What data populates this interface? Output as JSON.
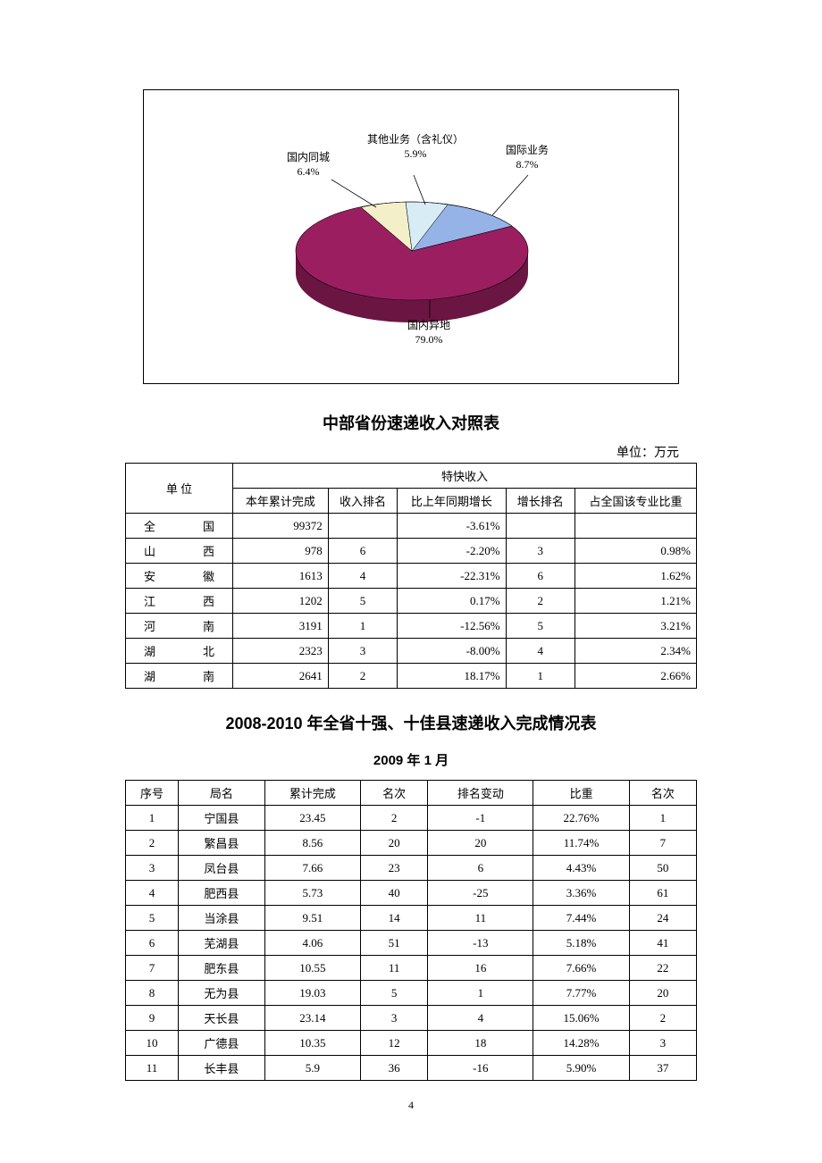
{
  "pie_chart": {
    "type": "pie",
    "background_color": "#ffffff",
    "border_color": "#000000",
    "slices": [
      {
        "label": "国内异地",
        "percent_text": "79.0%",
        "value": 79.0,
        "color": "#9b1f60",
        "side_color": "#6b1543"
      },
      {
        "label": "国际业务",
        "percent_text": "8.7%",
        "value": 8.7,
        "color": "#95b3e6",
        "side_color": "#6a84b5"
      },
      {
        "label": "其他业务（含礼仪）",
        "percent_text": "5.9%",
        "value": 5.9,
        "color": "#d7ecf4"
      },
      {
        "label": "国内同城",
        "percent_text": "6.4%",
        "value": 6.4,
        "color": "#f3efc9"
      }
    ],
    "label_fontsize": 12
  },
  "table1": {
    "title": "中部省份速递收入对照表",
    "unit": "单位：万元",
    "header_group": "特快收入",
    "header_unit": "单        位",
    "headers": [
      "本年累计完成",
      "收入排名",
      "比上年同期增长",
      "增长排名",
      "占全国该专业比重"
    ],
    "rows": [
      {
        "unit": "全        国",
        "v": [
          "99372",
          "",
          "-3.61%",
          "",
          ""
        ]
      },
      {
        "unit": "山        西",
        "v": [
          "978",
          "6",
          "-2.20%",
          "3",
          "0.98%"
        ]
      },
      {
        "unit": "安        徽",
        "v": [
          "1613",
          "4",
          "-22.31%",
          "6",
          "1.62%"
        ]
      },
      {
        "unit": "江        西",
        "v": [
          "1202",
          "5",
          "0.17%",
          "2",
          "1.21%"
        ]
      },
      {
        "unit": "河        南",
        "v": [
          "3191",
          "1",
          "-12.56%",
          "5",
          "3.21%"
        ]
      },
      {
        "unit": "湖        北",
        "v": [
          "2323",
          "3",
          "-8.00%",
          "4",
          "2.34%"
        ]
      },
      {
        "unit": "湖        南",
        "v": [
          "2641",
          "2",
          "18.17%",
          "1",
          "2.66%"
        ]
      }
    ]
  },
  "table2": {
    "title": "2008-2010 年全省十强、十佳县速递收入完成情况表",
    "date": "2009 年 1 月",
    "headers": [
      "序号",
      "局名",
      "累计完成",
      "名次",
      "排名变动",
      "比重",
      "名次"
    ],
    "rows": [
      [
        "1",
        "宁国县",
        "23.45",
        "2",
        "-1",
        "22.76%",
        "1"
      ],
      [
        "2",
        "繁昌县",
        "8.56",
        "20",
        "20",
        "11.74%",
        "7"
      ],
      [
        "3",
        "凤台县",
        "7.66",
        "23",
        "6",
        "4.43%",
        "50"
      ],
      [
        "4",
        "肥西县",
        "5.73",
        "40",
        "-25",
        "3.36%",
        "61"
      ],
      [
        "5",
        "当涂县",
        "9.51",
        "14",
        "11",
        "7.44%",
        "24"
      ],
      [
        "6",
        "芜湖县",
        "4.06",
        "51",
        "-13",
        "5.18%",
        "41"
      ],
      [
        "7",
        "肥东县",
        "10.55",
        "11",
        "16",
        "7.66%",
        "22"
      ],
      [
        "8",
        "无为县",
        "19.03",
        "5",
        "1",
        "7.77%",
        "20"
      ],
      [
        "9",
        "天长县",
        "23.14",
        "3",
        "4",
        "15.06%",
        "2"
      ],
      [
        "10",
        "广德县",
        "10.35",
        "12",
        "18",
        "14.28%",
        "3"
      ],
      [
        "11",
        "长丰县",
        "5.9",
        "36",
        "-16",
        "5.90%",
        "37"
      ]
    ]
  },
  "page_number": "4"
}
